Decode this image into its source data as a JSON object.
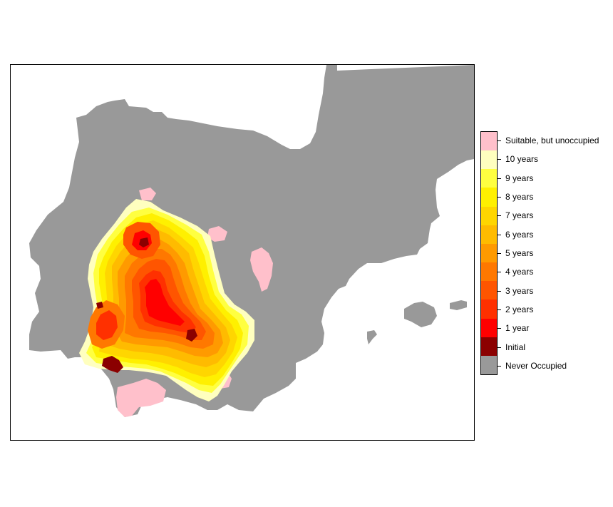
{
  "map": {
    "type": "raster-map",
    "legend_position": "right",
    "classes": [
      {
        "label": "Suitable, but unoccupied",
        "color": "#FFC0CB"
      },
      {
        "label": "10 years",
        "color": "#FFFFBF"
      },
      {
        "label": "9 years",
        "color": "#FFFF40"
      },
      {
        "label": "8 years",
        "color": "#FFF000"
      },
      {
        "label": "7 years",
        "color": "#FFD600"
      },
      {
        "label": "6 years",
        "color": "#FFBB00"
      },
      {
        "label": "5 years",
        "color": "#FF9A00"
      },
      {
        "label": "4 years",
        "color": "#FF7800"
      },
      {
        "label": "3 years",
        "color": "#FF5500"
      },
      {
        "label": "2 years",
        "color": "#FF3000"
      },
      {
        "label": "1 year",
        "color": "#FF0000"
      },
      {
        "label": "Initial",
        "color": "#8B0000"
      },
      {
        "label": "Never Occupied",
        "color": "#999999"
      }
    ]
  }
}
